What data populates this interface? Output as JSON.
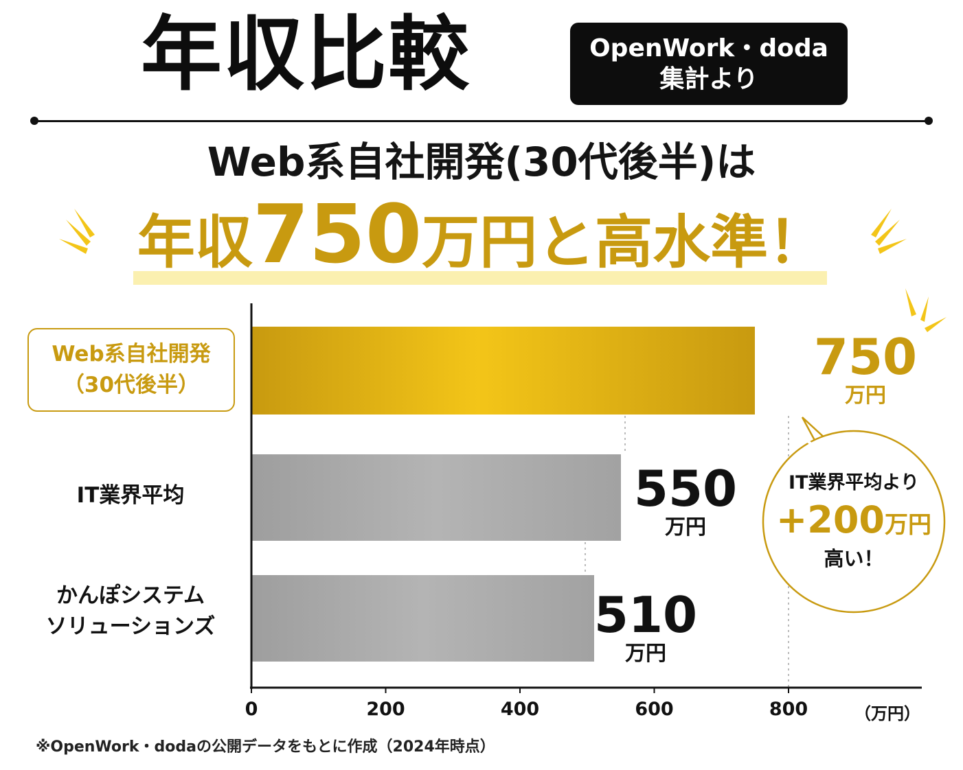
{
  "header": {
    "title": "年収比較",
    "source_badge_line1": "OpenWork・doda",
    "source_badge_line2": "集計より"
  },
  "headline": {
    "subtitle": "Web系自社開発(30代後半)は",
    "main_prefix": "年収",
    "main_number": "750",
    "main_unit": "万円と",
    "main_suffix": "高水準！"
  },
  "chart_data": {
    "type": "bar",
    "orientation": "horizontal",
    "categories": [
      [
        "Web系自社開発",
        "（30代後半）"
      ],
      [
        "IT業界平均"
      ],
      [
        "かんぽシステム",
        "ソリューションズ"
      ]
    ],
    "values": [
      750,
      550,
      510
    ],
    "value_labels": [
      "750",
      "550",
      "510"
    ],
    "value_unit": "万円",
    "x_ticks": [
      "0",
      "200",
      "400",
      "600",
      "800"
    ],
    "x_unit_label": "（万円）",
    "xlim": [
      0,
      900
    ],
    "highlight_index": 0,
    "grid": false,
    "colors": {
      "highlight": "#c89a10",
      "highlight_light": "#f3c518",
      "default": "#a9a9a9"
    }
  },
  "callout": {
    "line1": "IT業界平均より",
    "amount": "+200",
    "amount_unit": "万円",
    "line3": "高い！"
  },
  "footnote": "※OpenWork・dodaの公開データをもとに作成（2024年時点）",
  "colors": {
    "gold": "#c89a10",
    "highlight_yellow": "#fbf0b0",
    "badge_bg": "#0d0d0d"
  }
}
